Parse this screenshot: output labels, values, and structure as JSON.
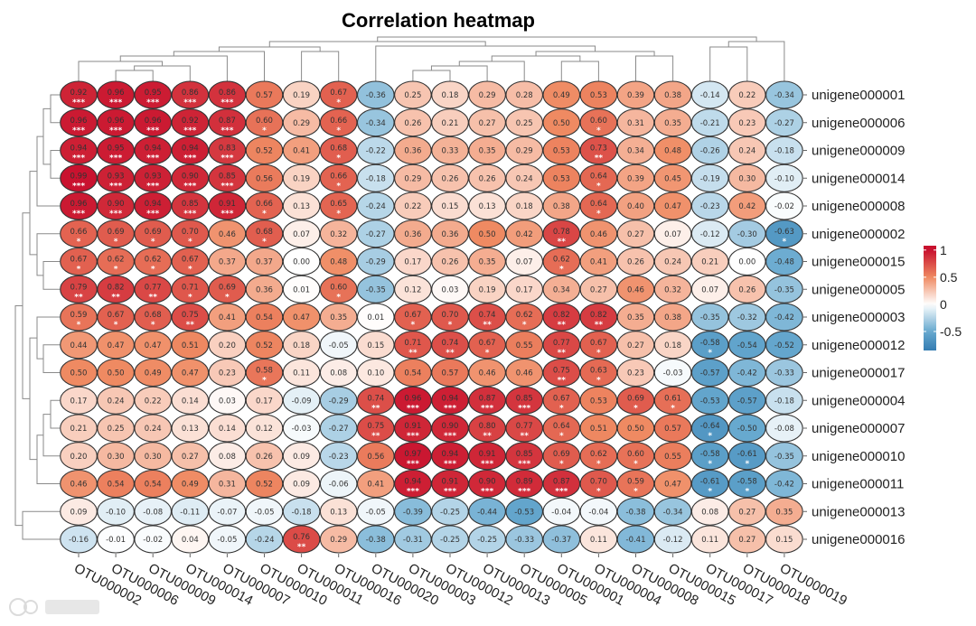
{
  "chart_data": {
    "type": "heatmap",
    "title": "Correlation heatmap",
    "columns": [
      "OTU000002",
      "OTU000006",
      "OTU000009",
      "OTU000014",
      "OTU000007",
      "OTU000010",
      "OTU000011",
      "OTU000016",
      "OTU000020",
      "OTU000003",
      "OTU000012",
      "OTU000013",
      "OTU000005",
      "OTU000001",
      "OTU000004",
      "OTU000008",
      "OTU000015",
      "OTU000017",
      "OTU000018",
      "OTU000019"
    ],
    "rows": [
      "unigene000001",
      "unigene000006",
      "unigene000009",
      "unigene000014",
      "unigene000008",
      "unigene000002",
      "unigene000015",
      "unigene000005",
      "unigene000003",
      "unigene000012",
      "unigene000017",
      "unigene000004",
      "unigene000007",
      "unigene000010",
      "unigene000011",
      "unigene000013",
      "unigene000016"
    ],
    "values": [
      [
        0.92,
        0.96,
        0.95,
        0.86,
        0.86,
        0.57,
        0.19,
        0.67,
        -0.36,
        0.25,
        0.18,
        0.29,
        0.28,
        0.49,
        0.53,
        0.39,
        0.38,
        -0.14,
        0.22,
        -0.34
      ],
      [
        0.96,
        0.96,
        0.96,
        0.92,
        0.87,
        0.6,
        0.29,
        0.66,
        -0.34,
        0.26,
        0.21,
        0.27,
        0.25,
        0.5,
        0.6,
        0.31,
        0.35,
        -0.21,
        0.23,
        -0.27
      ],
      [
        0.94,
        0.95,
        0.94,
        0.94,
        0.83,
        0.52,
        0.41,
        0.68,
        -0.22,
        0.36,
        0.33,
        0.35,
        0.29,
        0.53,
        0.73,
        0.34,
        0.48,
        -0.26,
        0.24,
        -0.18
      ],
      [
        0.99,
        0.93,
        0.93,
        0.9,
        0.85,
        0.56,
        0.19,
        0.66,
        -0.18,
        0.29,
        0.26,
        0.26,
        0.24,
        0.53,
        0.64,
        0.39,
        0.45,
        -0.19,
        0.3,
        -0.1
      ],
      [
        0.96,
        0.9,
        0.94,
        0.85,
        0.91,
        0.66,
        0.13,
        0.65,
        -0.24,
        0.22,
        0.15,
        0.13,
        0.18,
        0.38,
        0.64,
        0.4,
        0.47,
        -0.23,
        0.42,
        -0.02
      ],
      [
        0.66,
        0.69,
        0.69,
        0.7,
        0.46,
        0.68,
        0.07,
        0.32,
        -0.27,
        0.36,
        0.36,
        0.5,
        0.42,
        0.78,
        0.46,
        0.27,
        0.07,
        -0.12,
        -0.3,
        -0.63
      ],
      [
        0.67,
        0.62,
        0.62,
        0.67,
        0.37,
        0.37,
        0.0,
        0.48,
        -0.29,
        0.17,
        0.26,
        0.35,
        0.07,
        0.62,
        0.41,
        0.26,
        0.24,
        0.21,
        0.0,
        -0.48
      ],
      [
        0.79,
        0.82,
        0.77,
        0.71,
        0.69,
        0.36,
        0.01,
        0.6,
        -0.35,
        0.12,
        0.03,
        0.19,
        0.17,
        0.34,
        0.27,
        0.46,
        0.32,
        0.07,
        0.26,
        -0.35
      ],
      [
        0.59,
        0.67,
        0.68,
        0.75,
        0.41,
        0.54,
        0.47,
        0.35,
        0.01,
        0.67,
        0.7,
        0.74,
        0.62,
        0.82,
        0.82,
        0.35,
        0.38,
        -0.35,
        -0.32,
        -0.42
      ],
      [
        0.44,
        0.47,
        0.47,
        0.51,
        0.2,
        0.52,
        0.18,
        -0.05,
        0.15,
        0.71,
        0.74,
        0.67,
        0.55,
        0.77,
        0.67,
        0.27,
        0.18,
        -0.58,
        -0.54,
        -0.52
      ],
      [
        0.5,
        0.5,
        0.49,
        0.47,
        0.23,
        0.58,
        0.11,
        0.08,
        0.1,
        0.54,
        0.57,
        0.46,
        0.46,
        0.75,
        0.63,
        0.23,
        -0.03,
        -0.57,
        -0.42,
        -0.33
      ],
      [
        0.17,
        0.24,
        0.22,
        0.14,
        0.03,
        0.17,
        -0.09,
        -0.29,
        0.74,
        0.96,
        0.94,
        0.87,
        0.85,
        0.67,
        0.53,
        0.69,
        0.61,
        -0.53,
        -0.57,
        -0.18
      ],
      [
        0.21,
        0.25,
        0.24,
        0.13,
        0.14,
        0.12,
        -0.03,
        -0.27,
        0.75,
        0.91,
        0.9,
        0.8,
        0.77,
        0.64,
        0.51,
        0.5,
        0.57,
        -0.64,
        -0.5,
        -0.08
      ],
      [
        0.2,
        0.3,
        0.3,
        0.27,
        0.08,
        0.26,
        0.09,
        -0.23,
        0.56,
        0.97,
        0.94,
        0.91,
        0.85,
        0.69,
        0.62,
        0.6,
        0.55,
        -0.58,
        -0.61,
        -0.35
      ],
      [
        0.46,
        0.54,
        0.54,
        0.49,
        0.31,
        0.52,
        0.09,
        -0.06,
        0.41,
        0.94,
        0.91,
        0.9,
        0.89,
        0.87,
        0.7,
        0.59,
        0.47,
        -0.61,
        -0.58,
        -0.42
      ],
      [
        0.09,
        -0.1,
        -0.08,
        -0.11,
        -0.07,
        -0.05,
        -0.18,
        0.13,
        -0.05,
        -0.39,
        -0.25,
        -0.44,
        -0.53,
        -0.04,
        -0.04,
        -0.38,
        -0.34,
        0.08,
        0.27,
        0.35
      ],
      [
        -0.16,
        -0.01,
        -0.02,
        0.04,
        -0.05,
        -0.24,
        0.76,
        0.29,
        -0.38,
        -0.31,
        -0.25,
        -0.25,
        -0.33,
        -0.37,
        0.11,
        -0.41,
        -0.12,
        0.11,
        0.27,
        0.15
      ]
    ],
    "significance": [
      [
        "***",
        "***",
        "***",
        "***",
        "***",
        "",
        "",
        "*",
        "",
        "",
        "",
        "",
        "",
        "",
        "",
        "",
        "",
        "",
        "",
        ""
      ],
      [
        "***",
        "***",
        "***",
        "***",
        "***",
        "*",
        "",
        "*",
        "",
        "",
        "",
        "",
        "",
        "",
        "*",
        "",
        "",
        "",
        "",
        ""
      ],
      [
        "***",
        "***",
        "***",
        "***",
        "***",
        "",
        "",
        "*",
        "",
        "",
        "",
        "",
        "",
        "",
        "**",
        "",
        "",
        "",
        "",
        ""
      ],
      [
        "***",
        "***",
        "***",
        "***",
        "***",
        "",
        "",
        "*",
        "",
        "",
        "",
        "",
        "",
        "",
        "*",
        "",
        "",
        "",
        "",
        ""
      ],
      [
        "***",
        "***",
        "***",
        "***",
        "***",
        "*",
        "",
        "*",
        "",
        "",
        "",
        "",
        "",
        "",
        "*",
        "",
        "",
        "",
        "",
        ""
      ],
      [
        "*",
        "*",
        "*",
        "*",
        "",
        "*",
        "",
        "",
        "",
        "",
        "",
        "",
        "",
        "**",
        "",
        "",
        "",
        "",
        "",
        "*"
      ],
      [
        "*",
        "*",
        "*",
        "*",
        "",
        "",
        "",
        "",
        "",
        "",
        "",
        "",
        "",
        "*",
        "",
        "",
        "",
        "",
        "",
        ""
      ],
      [
        "**",
        "**",
        "**",
        "*",
        "*",
        "",
        "",
        "*",
        "",
        "",
        "",
        "",
        "",
        "",
        "",
        "",
        "",
        "",
        "",
        ""
      ],
      [
        "*",
        "*",
        "*",
        "**",
        "",
        "",
        "",
        "",
        "",
        "*",
        "*",
        "**",
        "*",
        "**",
        "**",
        "",
        "",
        "",
        "",
        ""
      ],
      [
        "",
        "",
        "",
        "",
        "",
        "",
        "",
        "",
        "",
        "**",
        "**",
        "*",
        "",
        "**",
        "*",
        "",
        "",
        "*",
        "",
        ""
      ],
      [
        "",
        "",
        "",
        "",
        "",
        "*",
        "",
        "",
        "",
        "",
        "",
        "",
        "",
        "**",
        "*",
        "",
        "",
        "",
        "",
        ""
      ],
      [
        "",
        "",
        "",
        "",
        "",
        "",
        "",
        "",
        "**",
        "***",
        "***",
        "***",
        "***",
        "*",
        "",
        "*",
        "*",
        "",
        "",
        ""
      ],
      [
        "",
        "",
        "",
        "",
        "",
        "",
        "",
        "",
        "**",
        "***",
        "***",
        "**",
        "**",
        "*",
        "",
        "",
        "",
        "*",
        "",
        ""
      ],
      [
        "",
        "",
        "",
        "",
        "",
        "",
        "",
        "",
        "",
        "***",
        "***",
        "***",
        "***",
        "*",
        "*",
        "*",
        "",
        "*",
        "*",
        ""
      ],
      [
        "",
        "",
        "",
        "",
        "",
        "",
        "",
        "",
        "",
        "***",
        "***",
        "***",
        "***",
        "***",
        "*",
        "*",
        "",
        "*",
        "*",
        ""
      ],
      [
        "",
        "",
        "",
        "",
        "",
        "",
        "",
        "",
        "",
        "",
        "",
        "",
        "",
        "",
        "",
        "",
        "",
        "",
        "",
        ""
      ],
      [
        "",
        "",
        "",
        "",
        "",
        "",
        "**",
        "",
        "",
        "",
        "",
        "",
        "",
        "",
        "",
        "",
        "",
        "",
        "",
        ""
      ]
    ],
    "value_range": [
      -1,
      1
    ],
    "colorbar": {
      "ticks": [
        "1",
        "0.5",
        "0",
        "-0.5"
      ],
      "tick_values": [
        1,
        0.5,
        0,
        -0.5
      ],
      "placement": "right"
    },
    "colors": {
      "high": "#c8102e",
      "mid_high": "#ef8a62",
      "zero": "#ffffff",
      "mid_low": "#67a9cf",
      "low": "#1f6aa5"
    },
    "row_dendrogram": true,
    "column_dendrogram": true
  },
  "watermark": "大数跨境"
}
